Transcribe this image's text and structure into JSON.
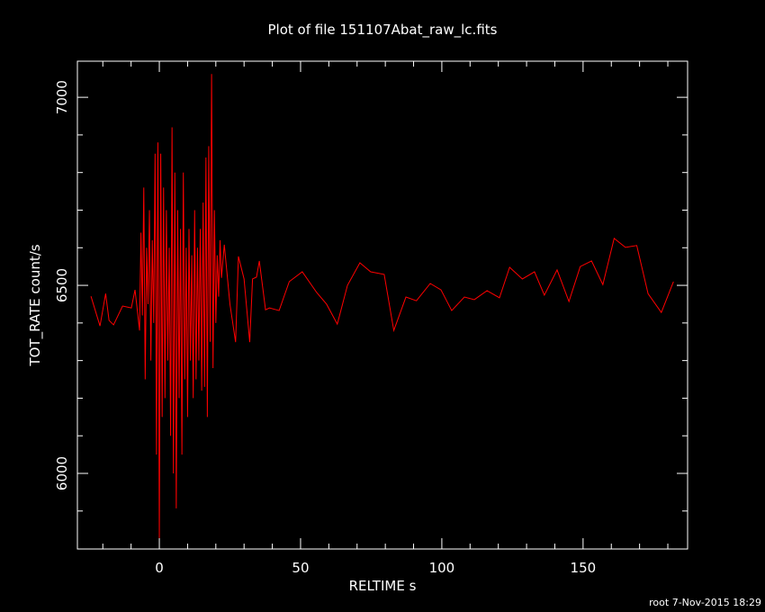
{
  "chart_data": {
    "type": "line",
    "title": "Plot of file 151107Abat_raw_lc.fits",
    "x_label": "RELTIME  s",
    "y_label": "TOT_RATE  count/s",
    "footer": "root  7-Nov-2015 18:29",
    "color": "#ff0000",
    "x": [
      -24.2,
      -21,
      -19,
      -17.8,
      -16.2,
      -13,
      -9.9,
      -8.6,
      -7,
      -6.5,
      -6,
      -5.5,
      -5,
      -4.5,
      -4,
      -3.5,
      -3,
      -2.5,
      -2,
      -1.5,
      -1,
      -0.5,
      0,
      0.5,
      1,
      1.5,
      2,
      2.5,
      3,
      3.5,
      4,
      4.5,
      5,
      5.5,
      6,
      6.5,
      7,
      7.5,
      8,
      8.5,
      9,
      9.5,
      10,
      10.5,
      11,
      11.5,
      12,
      12.5,
      13,
      13.5,
      14,
      14.5,
      15,
      15.5,
      16,
      16.5,
      17,
      17.5,
      18,
      18.5,
      19,
      19.5,
      20,
      20.5,
      21,
      21.5,
      22,
      23,
      25,
      27,
      28,
      30,
      32,
      33,
      34.4,
      35.4,
      37.6,
      39,
      42.4,
      46,
      50.6,
      55.7,
      59.2,
      63,
      66.6,
      71,
      74.8,
      79.6,
      83,
      87.3,
      91,
      95.9,
      99.7,
      103.5,
      108,
      111.5,
      116,
      120.4,
      124,
      128.5,
      132.8,
      136.3,
      140.8,
      145,
      149,
      153,
      157,
      161,
      165,
      169,
      173,
      177.7,
      182
    ],
    "values": [
      6471,
      6392,
      6478,
      6407,
      6395,
      6445,
      6440,
      6488,
      6380,
      6640,
      6420,
      6760,
      6250,
      6600,
      6450,
      6700,
      6300,
      6620,
      6400,
      6850,
      6050,
      6880,
      5828,
      6850,
      6150,
      6760,
      6200,
      6700,
      6300,
      6600,
      6100,
      6920,
      6000,
      6800,
      5907,
      6700,
      6200,
      6650,
      6050,
      6800,
      6250,
      6600,
      6150,
      6650,
      6300,
      6580,
      6200,
      6700,
      6250,
      6600,
      6300,
      6650,
      6220,
      6720,
      6230,
      6840,
      6150,
      6870,
      6350,
      7062,
      6280,
      6700,
      6400,
      6580,
      6470,
      6620,
      6520,
      6608,
      6450,
      6349,
      6577,
      6517,
      6349,
      6517,
      6522,
      6565,
      6435,
      6440,
      6433,
      6510,
      6536,
      6481,
      6450,
      6397,
      6500,
      6560,
      6536,
      6529,
      6380,
      6469,
      6459,
      6505,
      6488,
      6433,
      6469,
      6462,
      6486,
      6467,
      6548,
      6517,
      6536,
      6474,
      6541,
      6457,
      6550,
      6565,
      6502,
      6625,
      6601,
      6606,
      6478,
      6428,
      6510
    ],
    "xlim": [
      -29,
      187
    ],
    "ylim": [
      5799,
      7096
    ],
    "xticks": [
      0,
      50,
      100,
      150
    ],
    "yticks": [
      6000,
      6500,
      7000
    ],
    "xminorticks": [
      -20,
      -10,
      10,
      20,
      30,
      40,
      60,
      70,
      80,
      90,
      110,
      120,
      130,
      140,
      160,
      170,
      180
    ],
    "yminorticks": [
      5900,
      6100,
      6200,
      6300,
      6400,
      6600,
      6700,
      6800,
      6900
    ]
  }
}
